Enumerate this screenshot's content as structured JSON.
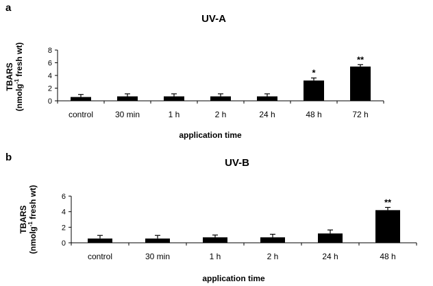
{
  "chart_data": [
    {
      "type": "bar",
      "panel": "a",
      "title": "UV-A",
      "categories": [
        "control",
        "30 min",
        "1 h",
        "2 h",
        "24 h",
        "48 h",
        "72 h"
      ],
      "values": [
        0.6,
        0.7,
        0.7,
        0.7,
        0.7,
        3.2,
        5.4
      ],
      "errors": [
        0.4,
        0.4,
        0.4,
        0.4,
        0.4,
        0.4,
        0.3
      ],
      "annotations": [
        "",
        "",
        "",
        "",
        "",
        "*",
        "**"
      ],
      "xlabel": "application time",
      "ylabel_main": "TBARS",
      "ylabel_unit_pre": "(nmolg",
      "ylabel_unit_sup": "-1",
      "ylabel_unit_post": " fresh wt)",
      "ylim": [
        0,
        8
      ],
      "yticks": [
        0,
        2,
        4,
        6,
        8
      ],
      "grid": false,
      "bar_color": "#000000"
    },
    {
      "type": "bar",
      "panel": "b",
      "title": "UV-B",
      "categories": [
        "control",
        "30 min",
        "1 h",
        "2 h",
        "24 h",
        "48 h"
      ],
      "values": [
        0.55,
        0.55,
        0.7,
        0.7,
        1.2,
        4.2
      ],
      "errors": [
        0.4,
        0.4,
        0.3,
        0.4,
        0.45,
        0.35
      ],
      "annotations": [
        "",
        "",
        "",
        "",
        "",
        "**"
      ],
      "xlabel": "application time",
      "ylabel_main": "TBARS",
      "ylabel_unit_pre": "(nmolg",
      "ylabel_unit_sup": "-1",
      "ylabel_unit_post": " fresh wt)",
      "ylim": [
        0,
        6
      ],
      "yticks": [
        0,
        2,
        4,
        6
      ],
      "grid": false,
      "bar_color": "#000000"
    }
  ]
}
